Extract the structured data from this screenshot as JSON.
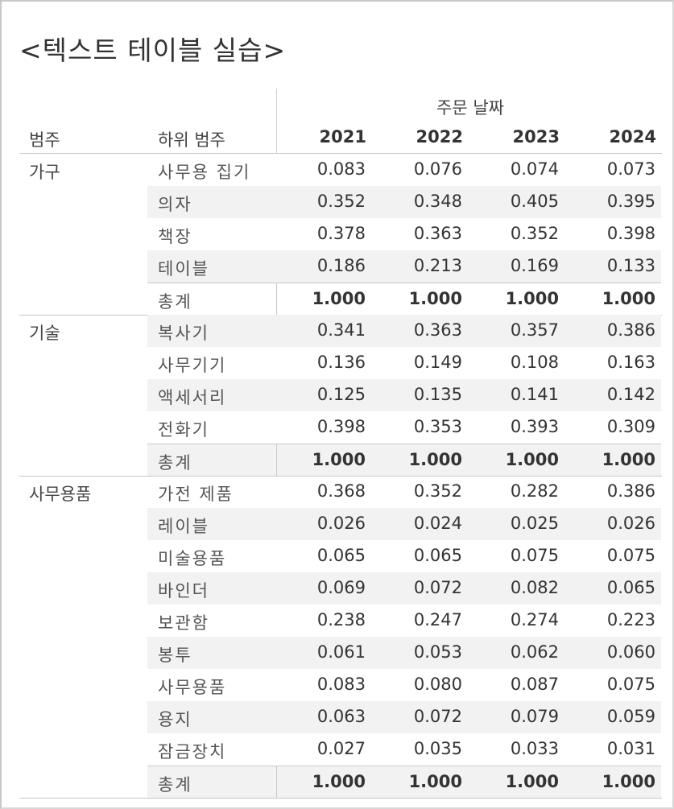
{
  "title": "<텍스트 테이블 실습>",
  "chart_data": {
    "type": "table",
    "column_field": "주문 날짜",
    "row_headers": [
      "범주",
      "하위 범주"
    ],
    "columns": [
      "2021",
      "2022",
      "2023",
      "2024"
    ],
    "categories": [
      {
        "name": "가구",
        "rows": [
          {
            "label": "사무용 집기",
            "values": [
              "0.083",
              "0.076",
              "0.074",
              "0.073"
            ]
          },
          {
            "label": "의자",
            "values": [
              "0.352",
              "0.348",
              "0.405",
              "0.395"
            ]
          },
          {
            "label": "책장",
            "values": [
              "0.378",
              "0.363",
              "0.352",
              "0.398"
            ]
          },
          {
            "label": "테이블",
            "values": [
              "0.186",
              "0.213",
              "0.169",
              "0.133"
            ]
          }
        ],
        "total": {
          "label": "총계",
          "values": [
            "1.000",
            "1.000",
            "1.000",
            "1.000"
          ]
        }
      },
      {
        "name": "기술",
        "rows": [
          {
            "label": "복사기",
            "values": [
              "0.341",
              "0.363",
              "0.357",
              "0.386"
            ]
          },
          {
            "label": "사무기기",
            "values": [
              "0.136",
              "0.149",
              "0.108",
              "0.163"
            ]
          },
          {
            "label": "액세서리",
            "values": [
              "0.125",
              "0.135",
              "0.141",
              "0.142"
            ]
          },
          {
            "label": "전화기",
            "values": [
              "0.398",
              "0.353",
              "0.393",
              "0.309"
            ]
          }
        ],
        "total": {
          "label": "총계",
          "values": [
            "1.000",
            "1.000",
            "1.000",
            "1.000"
          ]
        }
      },
      {
        "name": "사무용품",
        "rows": [
          {
            "label": "가전 제품",
            "values": [
              "0.368",
              "0.352",
              "0.282",
              "0.386"
            ]
          },
          {
            "label": "레이블",
            "values": [
              "0.026",
              "0.024",
              "0.025",
              "0.026"
            ]
          },
          {
            "label": "미술용품",
            "values": [
              "0.065",
              "0.065",
              "0.075",
              "0.075"
            ]
          },
          {
            "label": "바인더",
            "values": [
              "0.069",
              "0.072",
              "0.082",
              "0.065"
            ]
          },
          {
            "label": "보관함",
            "values": [
              "0.238",
              "0.247",
              "0.274",
              "0.223"
            ]
          },
          {
            "label": "봉투",
            "values": [
              "0.061",
              "0.053",
              "0.062",
              "0.060"
            ]
          },
          {
            "label": "사무용품",
            "values": [
              "0.083",
              "0.080",
              "0.087",
              "0.075"
            ]
          },
          {
            "label": "용지",
            "values": [
              "0.063",
              "0.072",
              "0.079",
              "0.059"
            ]
          },
          {
            "label": "잠금장치",
            "values": [
              "0.027",
              "0.035",
              "0.033",
              "0.031"
            ]
          }
        ],
        "total": {
          "label": "총계",
          "values": [
            "1.000",
            "1.000",
            "1.000",
            "1.000"
          ]
        }
      }
    ],
    "band_color": "#f2f2f2",
    "grid": true
  }
}
